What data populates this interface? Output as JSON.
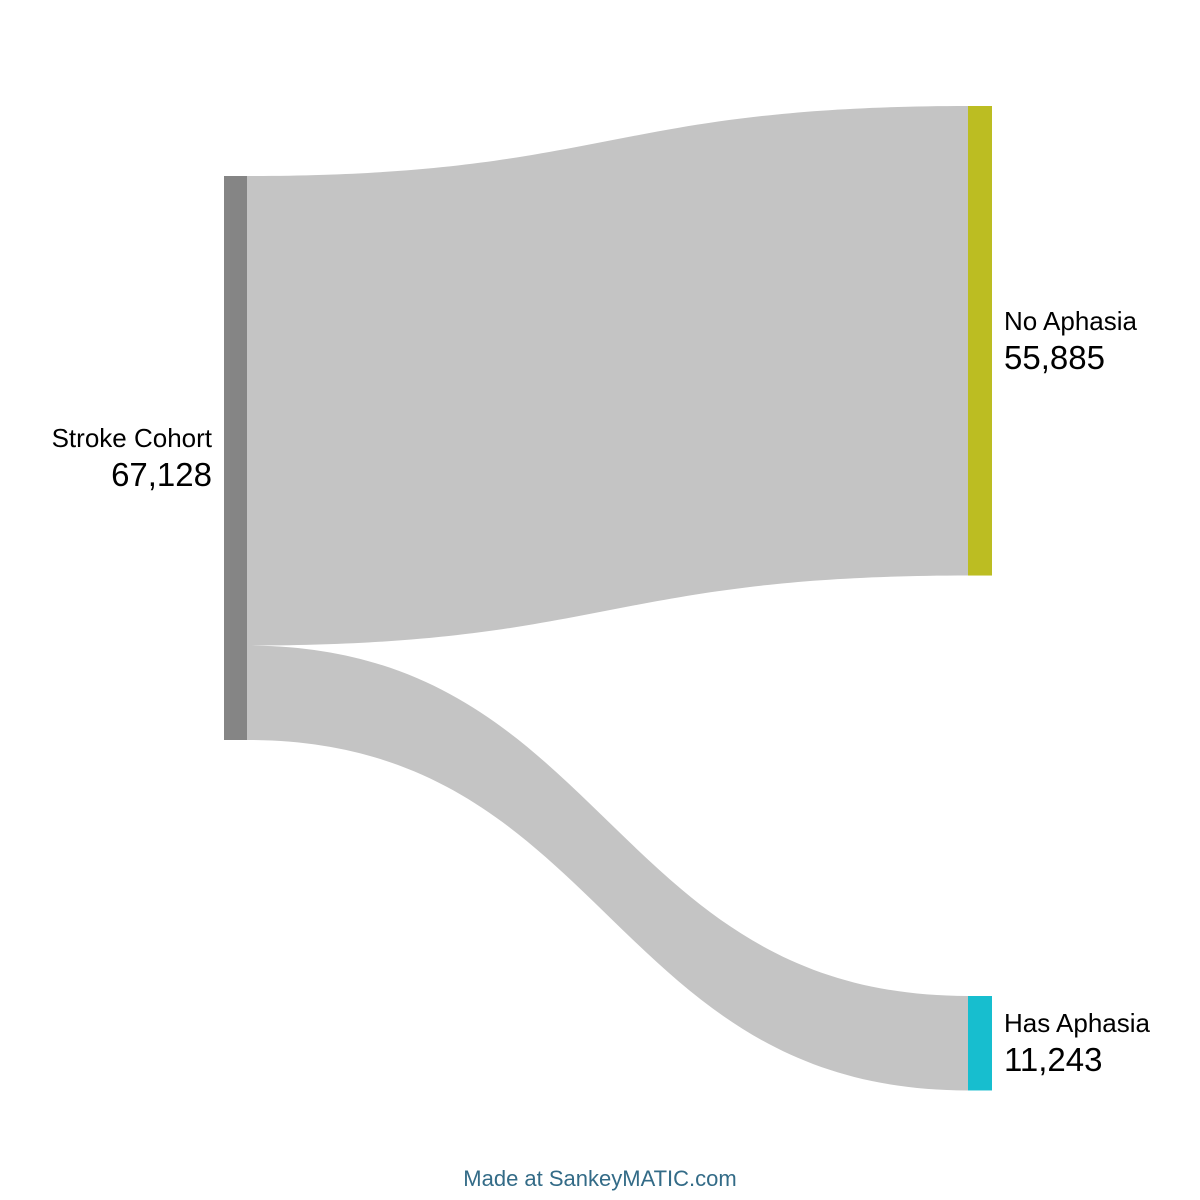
{
  "diagram": {
    "type": "sankey",
    "nodes": [
      {
        "id": "stroke",
        "label": "Stroke Cohort",
        "value": "67,128",
        "color": "#858585"
      },
      {
        "id": "no_aphasia",
        "label": "No Aphasia",
        "value": "55,885",
        "color": "#bcbd22"
      },
      {
        "id": "has_aphasia",
        "label": "Has Aphasia",
        "value": "11,243",
        "color": "#17becf"
      }
    ],
    "links": [
      {
        "source": "stroke",
        "target": "no_aphasia",
        "value": 55885,
        "color": "#c4c4c4"
      },
      {
        "source": "stroke",
        "target": "has_aphasia",
        "value": 11243,
        "color": "#c4c4c4"
      }
    ]
  },
  "footer": {
    "credit": "Made at SankeyMATIC.com"
  }
}
